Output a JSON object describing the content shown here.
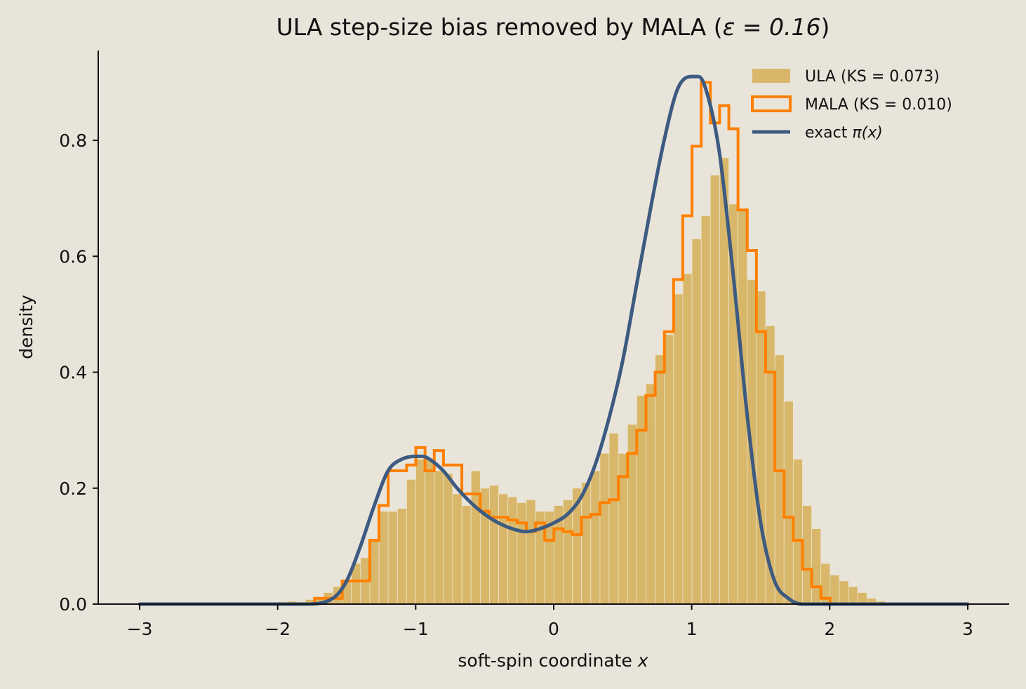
{
  "colors": {
    "background": "#e9e4da",
    "ula_fill": "#d8b76a",
    "ula_edge": "#ece3cb",
    "mala_line": "#ff8000",
    "exact_line": "#3d5a80",
    "axis": "#111111"
  },
  "chart_data": {
    "type": "histogram",
    "title_main": "ULA step-size bias removed by MALA  (",
    "title_math": "ε = 0.16",
    "title_close": ")",
    "xlabel_prefix": "soft-spin coordinate ",
    "xlabel_var": "x",
    "ylabel": "density",
    "xlim": [
      -3.3,
      3.3
    ],
    "ylim": [
      0,
      0.955
    ],
    "xticks": [
      -3,
      -2,
      -1,
      0,
      1,
      2,
      3
    ],
    "xtick_labels": [
      "−3",
      "−2",
      "−1",
      "0",
      "1",
      "2",
      "3"
    ],
    "yticks": [
      0.0,
      0.2,
      0.4,
      0.6,
      0.8
    ],
    "ytick_labels": [
      "0.0",
      "0.2",
      "0.4",
      "0.6",
      "0.8"
    ],
    "bin_start": -3.0,
    "bin_width": 0.0667,
    "grid": false,
    "legend_position": "top-right",
    "legend": [
      {
        "key": "ula",
        "text": "ULA  (KS = 0.073)"
      },
      {
        "key": "mala",
        "text": "MALA  (KS = 0.010)"
      },
      {
        "key": "exact",
        "prefix": "exact ",
        "math": "π(x)"
      }
    ],
    "series": [
      {
        "name": "ULA  (KS = 0.073)",
        "style": "filled-histogram",
        "values": [
          0,
          0,
          0,
          0,
          0,
          0,
          0,
          0,
          0,
          0,
          0,
          0,
          0,
          0,
          0.002,
          0.004,
          0.005,
          0.004,
          0.008,
          0.01,
          0.02,
          0.03,
          0.04,
          0.07,
          0.08,
          0.11,
          0.16,
          0.16,
          0.165,
          0.215,
          0.25,
          0.25,
          0.23,
          0.225,
          0.19,
          0.17,
          0.23,
          0.2,
          0.205,
          0.19,
          0.185,
          0.175,
          0.18,
          0.16,
          0.16,
          0.17,
          0.18,
          0.2,
          0.21,
          0.23,
          0.26,
          0.295,
          0.26,
          0.31,
          0.36,
          0.38,
          0.43,
          0.465,
          0.535,
          0.57,
          0.63,
          0.67,
          0.74,
          0.77,
          0.69,
          0.68,
          0.56,
          0.54,
          0.48,
          0.43,
          0.35,
          0.25,
          0.17,
          0.13,
          0.07,
          0.05,
          0.04,
          0.03,
          0.02,
          0.01,
          0.005,
          0.002,
          0,
          0,
          0,
          0,
          0,
          0,
          0,
          0
        ]
      },
      {
        "name": "MALA  (KS = 0.010)",
        "style": "step-histogram",
        "values": [
          0,
          0,
          0,
          0,
          0,
          0,
          0,
          0,
          0,
          0,
          0,
          0,
          0,
          0,
          0,
          0,
          0,
          0,
          0,
          0.01,
          0.01,
          0.01,
          0.04,
          0.04,
          0.04,
          0.11,
          0.17,
          0.23,
          0.23,
          0.24,
          0.27,
          0.23,
          0.265,
          0.24,
          0.24,
          0.19,
          0.19,
          0.16,
          0.15,
          0.15,
          0.145,
          0.14,
          0.125,
          0.14,
          0.11,
          0.13,
          0.125,
          0.12,
          0.15,
          0.155,
          0.175,
          0.18,
          0.22,
          0.26,
          0.3,
          0.36,
          0.4,
          0.47,
          0.56,
          0.67,
          0.79,
          0.9,
          0.83,
          0.86,
          0.82,
          0.68,
          0.61,
          0.47,
          0.4,
          0.23,
          0.15,
          0.11,
          0.06,
          0.03,
          0.01,
          0,
          0,
          0,
          0,
          0,
          0,
          0,
          0,
          0,
          0,
          0,
          0,
          0,
          0,
          0
        ]
      },
      {
        "name": "exact π(x)",
        "style": "line",
        "x": [
          -3.0,
          -2.0,
          -1.8,
          -1.6,
          -1.5,
          -1.4,
          -1.3,
          -1.2,
          -1.1,
          -1.0,
          -0.95,
          -0.9,
          -0.8,
          -0.7,
          -0.6,
          -0.5,
          -0.4,
          -0.3,
          -0.2,
          -0.1,
          0.0,
          0.1,
          0.2,
          0.3,
          0.4,
          0.5,
          0.6,
          0.7,
          0.8,
          0.9,
          1.0,
          1.05,
          1.1,
          1.2,
          1.3,
          1.4,
          1.5,
          1.6,
          1.7,
          1.8,
          2.0,
          3.0
        ],
        "y": [
          0.0,
          0.0,
          0.0,
          0.01,
          0.04,
          0.1,
          0.17,
          0.23,
          0.25,
          0.255,
          0.255,
          0.25,
          0.23,
          0.2,
          0.175,
          0.155,
          0.14,
          0.13,
          0.125,
          0.13,
          0.14,
          0.155,
          0.185,
          0.24,
          0.32,
          0.42,
          0.55,
          0.68,
          0.8,
          0.89,
          0.91,
          0.91,
          0.89,
          0.78,
          0.57,
          0.33,
          0.14,
          0.04,
          0.01,
          0.0,
          0.0,
          0.0
        ]
      }
    ]
  }
}
